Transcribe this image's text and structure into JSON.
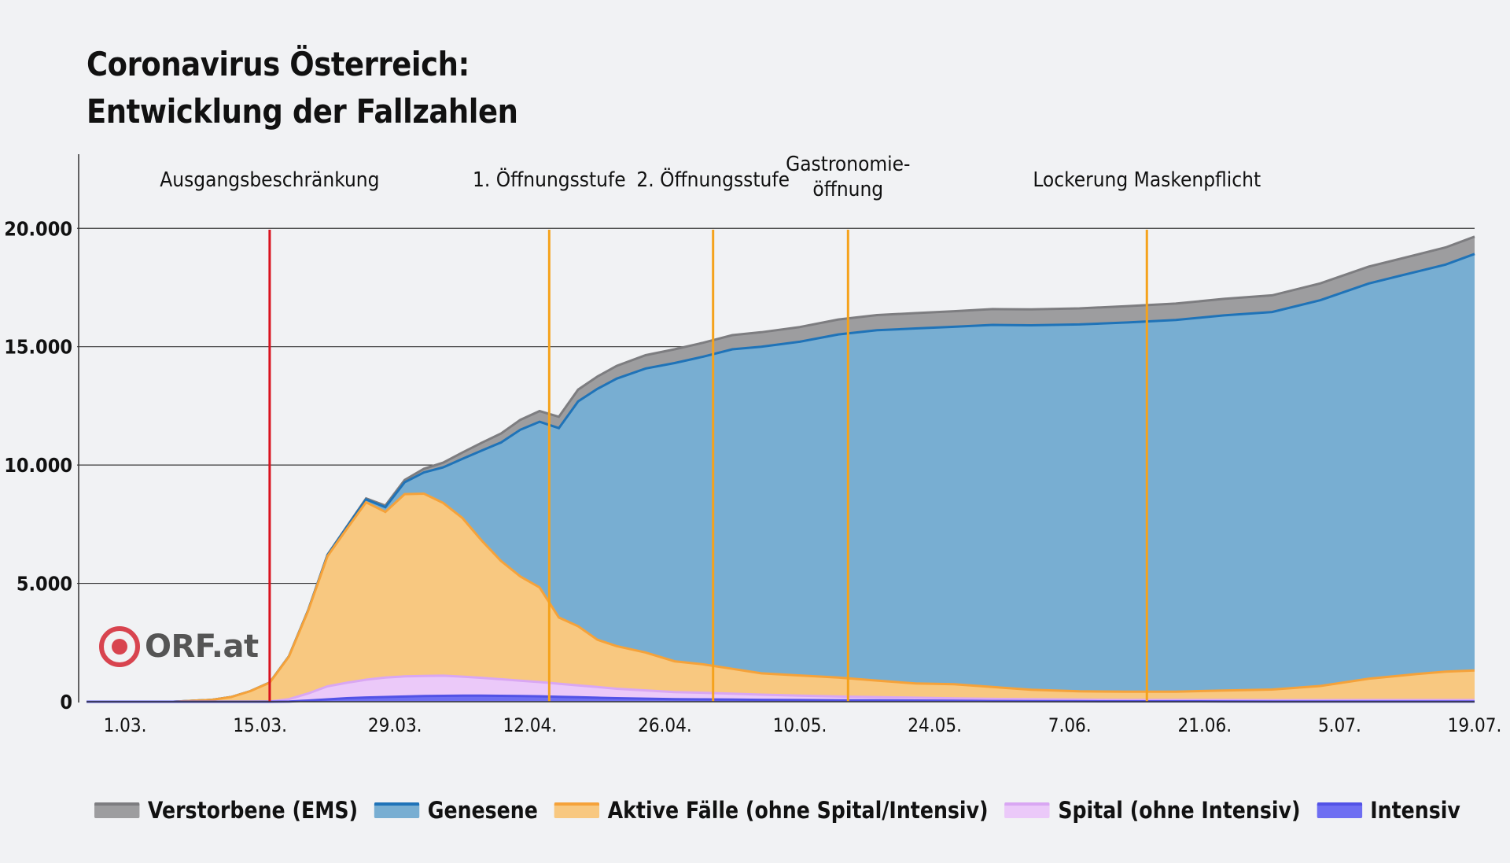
{
  "title": {
    "line1": "Coronavirus Österreich:",
    "line2": "Entwicklung der Fallzahlen"
  },
  "logo": {
    "text": "ORF.at",
    "color": "#d8444f"
  },
  "chart_data": {
    "type": "area",
    "stacked": true,
    "x_range": [
      "2020-02-26",
      "2020-07-19"
    ],
    "x_ticks": [
      {
        "date": "2020-03-01",
        "label": "1.03."
      },
      {
        "date": "2020-03-15",
        "label": "15.03."
      },
      {
        "date": "2020-03-29",
        "label": "29.03."
      },
      {
        "date": "2020-04-12",
        "label": "12.04."
      },
      {
        "date": "2020-04-26",
        "label": "26.04."
      },
      {
        "date": "2020-05-10",
        "label": "10.05."
      },
      {
        "date": "2020-05-24",
        "label": "24.05."
      },
      {
        "date": "2020-06-07",
        "label": "7.06."
      },
      {
        "date": "2020-06-21",
        "label": "21.06."
      },
      {
        "date": "2020-07-05",
        "label": "5.07."
      },
      {
        "date": "2020-07-19",
        "label": "19.07."
      }
    ],
    "y_ticks": [
      {
        "value": 0,
        "label": "0"
      },
      {
        "value": 5000,
        "label": "5.000"
      },
      {
        "value": 10000,
        "label": "10.000"
      },
      {
        "value": 15000,
        "label": "15.000"
      },
      {
        "value": 20000,
        "label": "20.000"
      }
    ],
    "ylim": [
      0,
      23000
    ],
    "grid": "horizontal",
    "legend_position": "bottom",
    "dates": [
      "2020-02-26",
      "2020-03-01",
      "2020-03-06",
      "2020-03-10",
      "2020-03-12",
      "2020-03-14",
      "2020-03-16",
      "2020-03-18",
      "2020-03-20",
      "2020-03-22",
      "2020-03-24",
      "2020-03-26",
      "2020-03-28",
      "2020-03-30",
      "2020-04-01",
      "2020-04-03",
      "2020-04-05",
      "2020-04-07",
      "2020-04-09",
      "2020-04-11",
      "2020-04-13",
      "2020-04-15",
      "2020-04-17",
      "2020-04-19",
      "2020-04-21",
      "2020-04-24",
      "2020-04-27",
      "2020-04-30",
      "2020-05-03",
      "2020-05-06",
      "2020-05-10",
      "2020-05-14",
      "2020-05-18",
      "2020-05-22",
      "2020-05-26",
      "2020-05-30",
      "2020-06-03",
      "2020-06-08",
      "2020-06-13",
      "2020-06-18",
      "2020-06-23",
      "2020-06-28",
      "2020-07-03",
      "2020-07-08",
      "2020-07-13",
      "2020-07-16",
      "2020-07-19"
    ],
    "series": [
      {
        "name": "Verstorbene (EMS)",
        "color": "#9d9d9f",
        "line": "#7d7d80",
        "values": [
          0,
          0,
          0,
          0,
          0,
          0,
          0,
          2,
          5,
          10,
          20,
          40,
          70,
          100,
          150,
          200,
          270,
          330,
          380,
          420,
          450,
          480,
          500,
          520,
          540,
          560,
          580,
          590,
          600,
          610,
          620,
          630,
          640,
          650,
          660,
          670,
          675,
          680,
          690,
          695,
          700,
          705,
          710,
          715,
          720,
          725,
          730
        ]
      },
      {
        "name": "Genesene",
        "color": "#78aed2",
        "line": "#1f73b8",
        "values": [
          0,
          0,
          0,
          0,
          0,
          0,
          5,
          10,
          20,
          50,
          80,
          120,
          200,
          500,
          900,
          1500,
          2500,
          3800,
          5000,
          6200,
          7000,
          8000,
          9500,
          10600,
          11300,
          12000,
          12600,
          13000,
          13500,
          13800,
          14100,
          14500,
          14800,
          15000,
          15100,
          15300,
          15400,
          15500,
          15600,
          15700,
          15850,
          15950,
          16300,
          16700,
          17000,
          17200,
          17600
        ]
      },
      {
        "name": "Aktive Fälle (ohne Spital/Intensiv)",
        "color": "#f8c880",
        "line": "#f5a23a",
        "values": [
          0,
          0,
          0,
          80,
          200,
          450,
          800,
          1800,
          3500,
          5500,
          6500,
          7500,
          7000,
          7700,
          7700,
          7300,
          6700,
          5800,
          5000,
          4400,
          4000,
          2800,
          2500,
          2000,
          1800,
          1600,
          1300,
          1200,
          1050,
          900,
          850,
          800,
          700,
          600,
          600,
          500,
          400,
          350,
          350,
          350,
          400,
          450,
          600,
          900,
          1100,
          1200,
          1250
        ]
      },
      {
        "name": "Spital (ohne Intensiv)",
        "color": "#ebc9f9",
        "line": "#d9a7f3",
        "values": [
          0,
          0,
          0,
          0,
          0,
          0,
          5,
          100,
          300,
          550,
          650,
          750,
          820,
          850,
          850,
          850,
          800,
          750,
          700,
          650,
          600,
          550,
          500,
          450,
          400,
          350,
          300,
          280,
          250,
          220,
          190,
          160,
          140,
          120,
          100,
          90,
          80,
          70,
          60,
          60,
          60,
          55,
          55,
          60,
          60,
          60,
          60
        ]
      },
      {
        "name": "Intensiv",
        "color": "#6e6ef2",
        "line": "#5252e6",
        "values": [
          0,
          0,
          0,
          0,
          0,
          0,
          0,
          10,
          50,
          100,
          150,
          180,
          200,
          220,
          240,
          250,
          260,
          260,
          250,
          240,
          230,
          210,
          190,
          170,
          150,
          130,
          110,
          100,
          90,
          80,
          70,
          60,
          55,
          50,
          40,
          30,
          25,
          20,
          15,
          15,
          12,
          10,
          10,
          10,
          10,
          10,
          10
        ]
      }
    ],
    "events": [
      {
        "date": "2020-03-16",
        "label": "Ausgangsbeschränkung",
        "color": "#d9121e"
      },
      {
        "date": "2020-04-14",
        "label": "1. Öffnungsstufe",
        "color": "#f5a21b"
      },
      {
        "date": "2020-05-01",
        "label": "2. Öffnungsstufe",
        "color": "#f5a21b"
      },
      {
        "date": "2020-05-15",
        "label": "Gastronomie-\nöffnung",
        "color": "#f5a21b"
      },
      {
        "date": "2020-06-15",
        "label": "Lockerung Maskenpflicht",
        "color": "#f5a21b"
      }
    ]
  }
}
